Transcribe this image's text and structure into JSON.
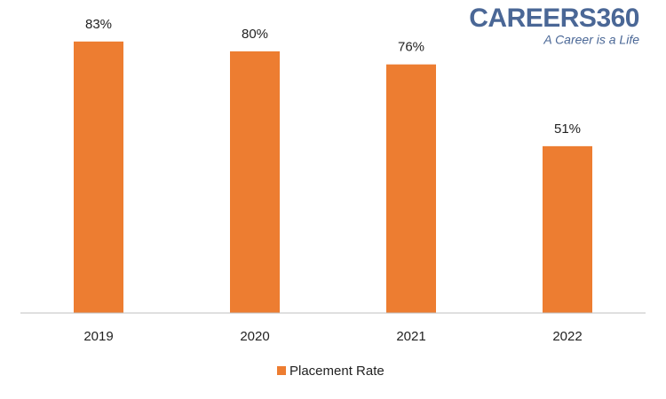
{
  "chart_data": {
    "type": "bar",
    "categories": [
      "2019",
      "2020",
      "2021",
      "2022"
    ],
    "series": [
      {
        "name": "Placement Rate",
        "color": "#ed7d31",
        "values": [
          83,
          80,
          76,
          51
        ],
        "value_labels": [
          "83%",
          "80%",
          "76%",
          "51%"
        ]
      }
    ],
    "ylim": [
      0,
      90
    ],
    "legend": "bottom",
    "logo": {
      "title": "CAREERS360",
      "tagline": "A Career is a Life"
    }
  }
}
